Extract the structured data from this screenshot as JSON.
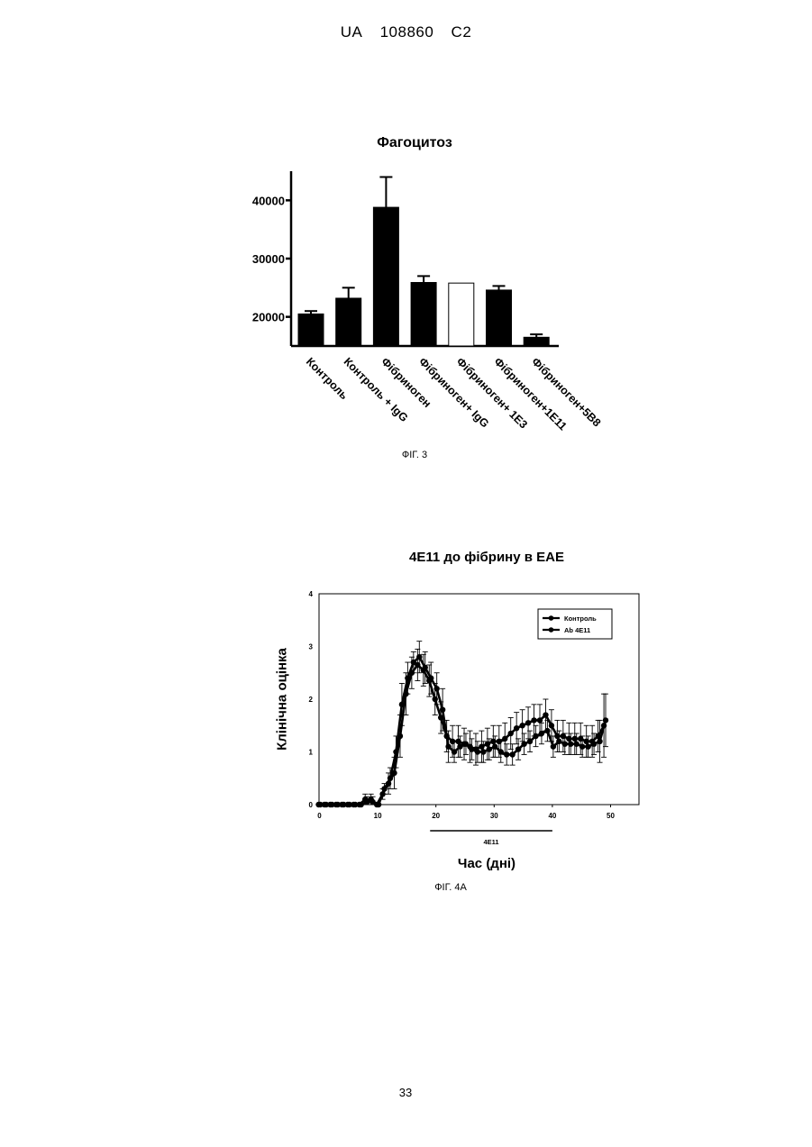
{
  "header": {
    "country": "UA",
    "number": "108860",
    "kind": "C2"
  },
  "page_number": "33",
  "chart_data": [
    {
      "type": "bar",
      "title": "Фагоцитоз",
      "caption": "ФІГ. 3",
      "categories": [
        "Контроль",
        "Контроль + IgG",
        "Фібриноген",
        "Фібриноген+ IgG",
        "Фібриноген+ 1E3",
        "Фібриноген+1E11",
        "Фібриноген+5B8"
      ],
      "values": [
        20500,
        23200,
        38800,
        25900,
        25800,
        24600,
        16500
      ],
      "errors": [
        500,
        1800,
        5200,
        1100,
        0,
        700,
        500
      ],
      "bar_colors": [
        "#000000",
        "#000000",
        "#000000",
        "#000000",
        "#ffffff",
        "#000000",
        "#000000"
      ],
      "yticks": [
        "20000",
        "30000",
        "40000"
      ],
      "ytick_values": [
        20000,
        30000,
        40000
      ],
      "ylim": [
        15000,
        45000
      ]
    },
    {
      "type": "line",
      "title": "4E11 до фібрину в EAE",
      "caption": "ФІГ. 4А",
      "xlabel": "Час (дні)",
      "ylabel": "Клінічна оцінка",
      "xlim": [
        0,
        50
      ],
      "ylim": [
        0,
        4
      ],
      "xticks": [
        "0",
        "10",
        "20",
        "30",
        "40",
        "50"
      ],
      "xtick_values": [
        0,
        10,
        20,
        30,
        40,
        50
      ],
      "yticks": [
        "0",
        "1",
        "2",
        "3",
        "4"
      ],
      "ytick_values": [
        0,
        1,
        2,
        3,
        4
      ],
      "legend_position": "top-right",
      "treatment_bar": {
        "label": "4E11",
        "start": 19,
        "end": 40
      },
      "series": [
        {
          "name": "Контроль",
          "x": [
            0,
            1,
            2,
            3,
            4,
            5,
            6,
            7,
            8,
            9,
            10,
            11,
            12,
            13,
            14,
            15,
            16,
            17,
            18,
            19,
            20,
            21,
            22,
            23,
            24,
            25,
            26,
            27,
            28,
            29,
            30,
            31,
            32,
            33,
            34,
            35,
            36,
            37,
            38,
            39,
            40,
            41,
            42,
            43,
            44,
            45,
            46,
            47,
            48,
            49
          ],
          "y": [
            0,
            0,
            0,
            0,
            0,
            0,
            0,
            0,
            0.1,
            0.1,
            0,
            0.2,
            0.4,
            0.6,
            1.3,
            2.1,
            2.5,
            2.65,
            2.55,
            2.35,
            2.0,
            1.65,
            1.3,
            1.2,
            1.2,
            1.15,
            1.1,
            1.05,
            1.1,
            1.15,
            1.2,
            1.2,
            1.25,
            1.35,
            1.45,
            1.5,
            1.55,
            1.6,
            1.6,
            1.7,
            1.5,
            1.3,
            1.3,
            1.25,
            1.25,
            1.25,
            1.2,
            1.2,
            1.3,
            1.5
          ],
          "err": [
            0,
            0,
            0,
            0,
            0,
            0,
            0,
            0,
            0.1,
            0.1,
            0,
            0.1,
            0.2,
            0.3,
            0.4,
            0.4,
            0.3,
            0.3,
            0.3,
            0.3,
            0.3,
            0.3,
            0.3,
            0.3,
            0.3,
            0.3,
            0.3,
            0.3,
            0.3,
            0.3,
            0.3,
            0.3,
            0.3,
            0.3,
            0.3,
            0.3,
            0.3,
            0.3,
            0.3,
            0.3,
            0.3,
            0.3,
            0.3,
            0.3,
            0.3,
            0.3,
            0.3,
            0.3,
            0.3,
            0.6
          ]
        },
        {
          "name": "Ab 4E11",
          "x": [
            0,
            1,
            2,
            3,
            4,
            5,
            6,
            7,
            8,
            9,
            10,
            11,
            12,
            13,
            14,
            15,
            16,
            17,
            18,
            19,
            20,
            21,
            22,
            23,
            24,
            25,
            26,
            27,
            28,
            29,
            30,
            31,
            32,
            33,
            34,
            35,
            36,
            37,
            38,
            39,
            40,
            41,
            42,
            43,
            44,
            45,
            46,
            47,
            48,
            49
          ],
          "y": [
            0,
            0,
            0,
            0,
            0,
            0,
            0,
            0,
            0.05,
            0.05,
            0,
            0.3,
            0.5,
            1.0,
            1.9,
            2.4,
            2.7,
            2.8,
            2.6,
            2.4,
            2.2,
            1.8,
            1.1,
            1.0,
            1.1,
            1.15,
            1.05,
            1.0,
            1.0,
            1.05,
            1.1,
            1.0,
            0.95,
            0.95,
            1.05,
            1.15,
            1.2,
            1.3,
            1.35,
            1.4,
            1.1,
            1.2,
            1.15,
            1.15,
            1.15,
            1.1,
            1.1,
            1.15,
            1.2,
            1.6
          ],
          "err": [
            0,
            0,
            0,
            0,
            0,
            0,
            0,
            0,
            0.1,
            0.1,
            0,
            0.1,
            0.2,
            0.3,
            0.4,
            0.3,
            0.2,
            0.3,
            0.3,
            0.3,
            0.3,
            0.4,
            0.3,
            0.2,
            0.2,
            0.2,
            0.2,
            0.2,
            0.2,
            0.2,
            0.2,
            0.2,
            0.2,
            0.2,
            0.2,
            0.2,
            0.2,
            0.2,
            0.2,
            0.2,
            0.2,
            0.2,
            0.2,
            0.2,
            0.2,
            0.2,
            0.2,
            0.2,
            0.4,
            0.5
          ]
        }
      ]
    }
  ]
}
